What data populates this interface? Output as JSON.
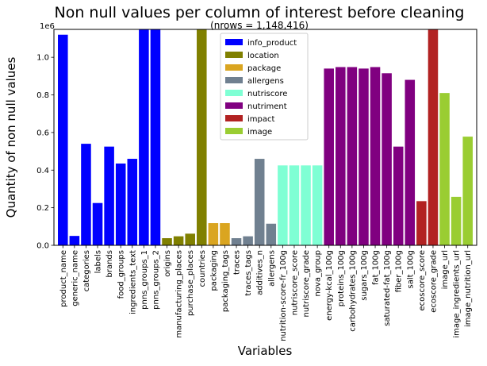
{
  "chart_data": {
    "type": "bar",
    "title": "Non null values per column of interest before cleaning",
    "subtitle": "(nrows = 1,148,416)",
    "xlabel": "Variables",
    "ylabel": "Quantity of non null values",
    "y_multiplier_label": "1e6",
    "ylim": [
      0,
      1148416
    ],
    "yticks": [
      0,
      200000,
      400000,
      600000,
      800000,
      1000000
    ],
    "ytick_labels": [
      "0.0",
      "0.2",
      "0.4",
      "0.6",
      "0.8",
      "1.0"
    ],
    "grid": false,
    "legend_position": "top-center",
    "groups": [
      {
        "name": "info_product",
        "color": "#0000ff"
      },
      {
        "name": "location",
        "color": "#808000"
      },
      {
        "name": "package",
        "color": "#daa520"
      },
      {
        "name": "allergens",
        "color": "#708090"
      },
      {
        "name": "nutriscore",
        "color": "#7fffd4"
      },
      {
        "name": "nutriment",
        "color": "#800080"
      },
      {
        "name": "impact",
        "color": "#b22222"
      },
      {
        "name": "image",
        "color": "#9acd32"
      }
    ],
    "categories": [
      "product_name",
      "generic_name",
      "categories",
      "labels",
      "brands",
      "food_groups",
      "ingredients_text",
      "pnns_groups_1",
      "pnns_groups_2",
      "origins",
      "manufacturing_places",
      "purchase_places",
      "countries",
      "packaging",
      "packaging_tags",
      "traces",
      "traces_tags",
      "additives_n",
      "allergens",
      "nutrition-score-fr_100g",
      "nutriscore_score",
      "nutriscore_grade",
      "nova_group",
      "energy-kcal_100g",
      "proteins_100g",
      "carbohydrates_100g",
      "sugars_100g",
      "fat_100g",
      "saturated-fat_100g",
      "fiber_100g",
      "salt_100g",
      "ecoscore_score",
      "ecoscore_grade",
      "image_url",
      "image_ingredients_url",
      "image_nutrition_url"
    ],
    "values": [
      1120000,
      50000,
      540000,
      225000,
      525000,
      435000,
      460000,
      1148416,
      1148416,
      38000,
      48000,
      62000,
      1148416,
      118000,
      118000,
      38000,
      48000,
      460000,
      115000,
      425000,
      425000,
      425000,
      425000,
      940000,
      948000,
      948000,
      940000,
      948000,
      915000,
      525000,
      880000,
      235000,
      1148416,
      810000,
      258000,
      578000
    ],
    "category_group": [
      "info_product",
      "info_product",
      "info_product",
      "info_product",
      "info_product",
      "info_product",
      "info_product",
      "info_product",
      "info_product",
      "location",
      "location",
      "location",
      "location",
      "package",
      "package",
      "allergens",
      "allergens",
      "allergens",
      "allergens",
      "nutriscore",
      "nutriscore",
      "nutriscore",
      "nutriscore",
      "nutriment",
      "nutriment",
      "nutriment",
      "nutriment",
      "nutriment",
      "nutriment",
      "nutriment",
      "nutriment",
      "impact",
      "impact",
      "image",
      "image",
      "image"
    ]
  }
}
